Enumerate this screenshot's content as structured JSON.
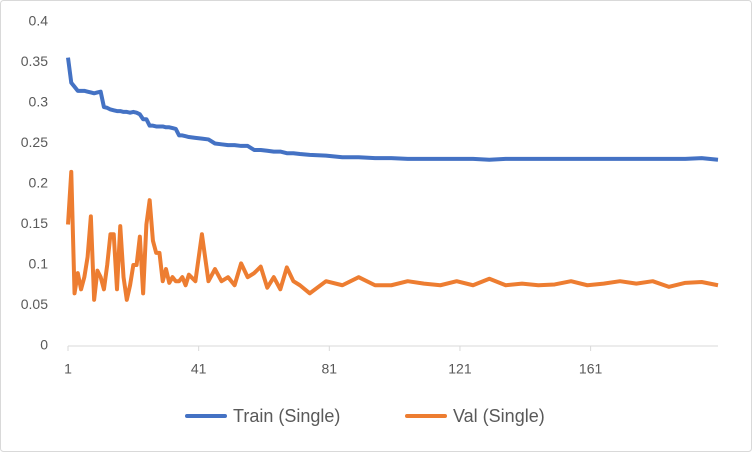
{
  "chart_data": {
    "type": "line",
    "x": [
      1,
      2,
      3,
      4,
      5,
      6,
      7,
      8,
      9,
      10,
      11,
      12,
      13,
      14,
      15,
      16,
      17,
      18,
      19,
      20,
      21,
      22,
      23,
      24,
      25,
      26,
      27,
      28,
      29,
      30,
      31,
      32,
      33,
      34,
      35,
      36,
      37,
      38,
      40,
      42,
      44,
      46,
      48,
      50,
      52,
      54,
      56,
      58,
      60,
      62,
      64,
      66,
      68,
      70,
      72,
      75,
      80,
      85,
      90,
      95,
      100,
      105,
      110,
      115,
      120,
      125,
      130,
      135,
      140,
      145,
      150,
      155,
      160,
      165,
      170,
      175,
      180,
      185,
      190,
      195,
      200
    ],
    "series": [
      {
        "name": "Train (Single)",
        "color": "#4472c4",
        "values": [
          0.356,
          0.325,
          0.32,
          0.315,
          0.315,
          0.315,
          0.314,
          0.313,
          0.312,
          0.313,
          0.314,
          0.295,
          0.294,
          0.292,
          0.291,
          0.29,
          0.29,
          0.289,
          0.289,
          0.288,
          0.289,
          0.288,
          0.286,
          0.28,
          0.28,
          0.272,
          0.272,
          0.271,
          0.271,
          0.271,
          0.27,
          0.27,
          0.269,
          0.268,
          0.26,
          0.26,
          0.259,
          0.258,
          0.257,
          0.256,
          0.255,
          0.25,
          0.249,
          0.248,
          0.248,
          0.247,
          0.247,
          0.242,
          0.242,
          0.241,
          0.24,
          0.24,
          0.238,
          0.238,
          0.237,
          0.236,
          0.235,
          0.233,
          0.233,
          0.232,
          0.232,
          0.231,
          0.231,
          0.231,
          0.231,
          0.231,
          0.23,
          0.231,
          0.231,
          0.231,
          0.231,
          0.231,
          0.231,
          0.231,
          0.231,
          0.231,
          0.231,
          0.231,
          0.231,
          0.232,
          0.23
        ]
      },
      {
        "name": "Val (Single)",
        "color": "#ed7d31",
        "values": [
          0.15,
          0.215,
          0.065,
          0.09,
          0.07,
          0.085,
          0.11,
          0.16,
          0.057,
          0.093,
          0.085,
          0.07,
          0.1,
          0.138,
          0.138,
          0.07,
          0.148,
          0.085,
          0.057,
          0.075,
          0.1,
          0.1,
          0.135,
          0.065,
          0.15,
          0.18,
          0.13,
          0.115,
          0.115,
          0.08,
          0.095,
          0.078,
          0.085,
          0.08,
          0.08,
          0.085,
          0.075,
          0.088,
          0.08,
          0.138,
          0.08,
          0.095,
          0.08,
          0.085,
          0.075,
          0.102,
          0.085,
          0.09,
          0.098,
          0.072,
          0.085,
          0.07,
          0.097,
          0.08,
          0.075,
          0.065,
          0.08,
          0.075,
          0.085,
          0.075,
          0.075,
          0.08,
          0.077,
          0.075,
          0.08,
          0.075,
          0.083,
          0.075,
          0.077,
          0.075,
          0.076,
          0.08,
          0.075,
          0.077,
          0.08,
          0.077,
          0.08,
          0.073,
          0.078,
          0.079,
          0.075
        ]
      }
    ],
    "xlim": [
      1,
      200
    ],
    "xticks": [
      1,
      41,
      81,
      121,
      161
    ],
    "ylim": [
      0,
      0.4
    ],
    "yticks": [
      0,
      0.05,
      0.1,
      0.15,
      0.2,
      0.25,
      0.3,
      0.35,
      0.4
    ],
    "grid": false,
    "legend": "bottom"
  }
}
